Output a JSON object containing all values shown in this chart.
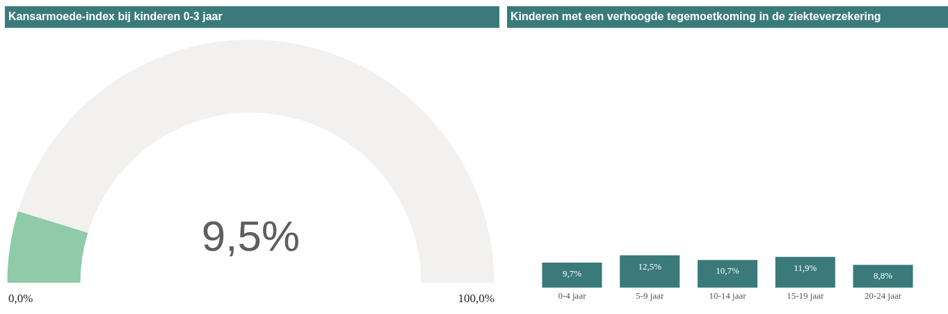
{
  "chart_data": [
    {
      "type": "donut",
      "title": "Kansarmoede-index bij kinderen 0-3 jaar",
      "categories": [
        null,
        null
      ],
      "values": [
        9.5,
        90.5
      ],
      "colors": [
        "#8fcaa9",
        "#f2f1f0"
      ],
      "annotations": [
        "9,5%",
        "0,0%",
        "100,0%"
      ]
    },
    {
      "type": "bar",
      "title": "Kinderen met een verhoogde tegemoetkoming in de ziekteverzekering",
      "categories": [
        "0-4 jaar",
        "5-9 jaar",
        "10-14 jaar",
        "15-19 jaar",
        "20-24 jaar"
      ],
      "values": [
        9.7,
        12.5,
        10.7,
        11.9,
        8.8
      ],
      "color": "#3a7a7a",
      "value_labels": [
        "9,7%",
        "12,5%",
        "10,7%",
        "11,9%",
        "8,8%"
      ],
      "ylim": [
        0,
        100
      ]
    }
  ]
}
